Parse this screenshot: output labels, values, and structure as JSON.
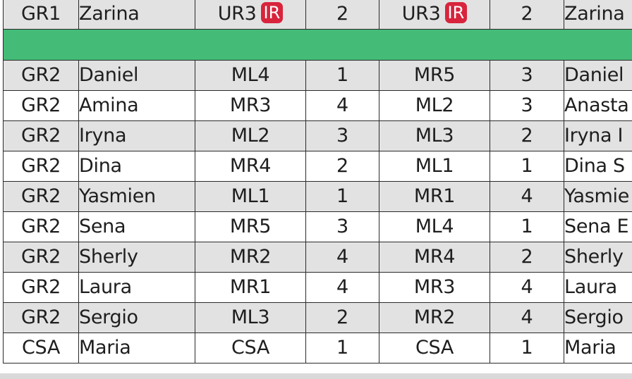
{
  "table": {
    "rows": [
      {
        "group": "GR1",
        "name": "Zarina",
        "pos1": "UR3",
        "pos1_badge": "IR",
        "val1": "2",
        "pos2": "UR3",
        "pos2_badge": "IR",
        "val2": "2",
        "name2": "Zarina"
      },
      {
        "group": "GR2",
        "name": "Daniel",
        "pos1": "ML4",
        "val1": "1",
        "pos2": "MR5",
        "val2": "3",
        "name2": "Daniel"
      },
      {
        "group": "GR2",
        "name": "Amina",
        "pos1": "MR3",
        "val1": "4",
        "pos2": "ML2",
        "val2": "3",
        "name2": "Anasta"
      },
      {
        "group": "GR2",
        "name": "Iryna",
        "pos1": "ML2",
        "val1": "3",
        "pos2": "ML3",
        "val2": "2",
        "name2": "Iryna I"
      },
      {
        "group": "GR2",
        "name": "Dina",
        "pos1": "MR4",
        "val1": "2",
        "pos2": "ML1",
        "val2": "1",
        "name2": "Dina S"
      },
      {
        "group": "GR2",
        "name": "Yasmien",
        "pos1": "ML1",
        "val1": "1",
        "pos2": "MR1",
        "val2": "4",
        "name2": "Yasmie"
      },
      {
        "group": "GR2",
        "name": "Sena",
        "pos1": "MR5",
        "val1": "3",
        "pos2": "ML4",
        "val2": "1",
        "name2": "Sena E"
      },
      {
        "group": "GR2",
        "name": "Sherly",
        "pos1": "MR2",
        "val1": "4",
        "pos2": "MR4",
        "val2": "2",
        "name2": "Sherly"
      },
      {
        "group": "GR2",
        "name": "Laura",
        "pos1": "MR1",
        "val1": "4",
        "pos2": "MR3",
        "val2": "4",
        "name2": "Laura"
      },
      {
        "group": "GR2",
        "name": "Sergio",
        "pos1": "ML3",
        "val1": "2",
        "pos2": "MR2",
        "val2": "4",
        "name2": "Sergio"
      },
      {
        "group": "CSA",
        "name": "Maria",
        "pos1": "CSA",
        "val1": "1",
        "pos2": "CSA",
        "val2": "1",
        "name2": "Maria"
      }
    ]
  },
  "colors": {
    "separator": "#44bb77",
    "badge": "#d8243c",
    "row_alt": "#e2e2e2"
  }
}
